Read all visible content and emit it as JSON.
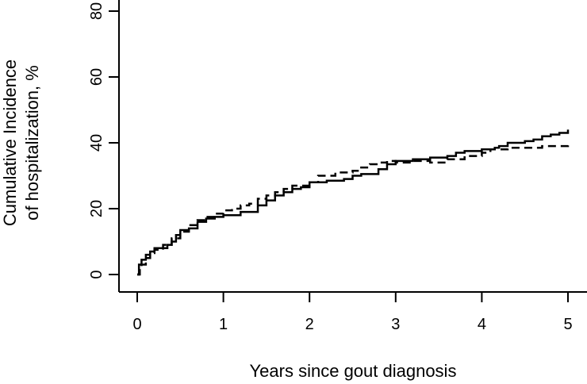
{
  "chart_data": {
    "type": "line",
    "title": "",
    "xlabel": "Years since gout diagnosis",
    "ylabel_lines": [
      "Cumulative Incidence",
      "of hospitalization, %"
    ],
    "xlim": [
      0,
      5
    ],
    "ylim": [
      0,
      80
    ],
    "x_ticks": [
      0,
      1,
      2,
      3,
      4,
      5
    ],
    "y_ticks": [
      0,
      20,
      40,
      60,
      80
    ],
    "grid": false,
    "legend": "none",
    "series": [
      {
        "style": "solid",
        "color": "#000000",
        "points": [
          [
            0,
            0
          ],
          [
            0.02,
            3
          ],
          [
            0.05,
            4.5
          ],
          [
            0.1,
            6
          ],
          [
            0.15,
            7
          ],
          [
            0.2,
            8
          ],
          [
            0.3,
            8
          ],
          [
            0.35,
            9
          ],
          [
            0.4,
            10
          ],
          [
            0.45,
            12
          ],
          [
            0.5,
            13.5
          ],
          [
            0.6,
            14
          ],
          [
            0.7,
            16
          ],
          [
            0.8,
            17
          ],
          [
            0.9,
            17.5
          ],
          [
            1.0,
            18
          ],
          [
            1.2,
            19
          ],
          [
            1.3,
            19
          ],
          [
            1.4,
            21
          ],
          [
            1.5,
            22.5
          ],
          [
            1.6,
            24
          ],
          [
            1.7,
            25
          ],
          [
            1.8,
            26
          ],
          [
            1.9,
            26.5
          ],
          [
            2.0,
            28
          ],
          [
            2.2,
            28.5
          ],
          [
            2.4,
            29
          ],
          [
            2.5,
            30
          ],
          [
            2.6,
            30.5
          ],
          [
            2.8,
            32
          ],
          [
            2.9,
            33.5
          ],
          [
            3.0,
            34.5
          ],
          [
            3.2,
            35
          ],
          [
            3.4,
            35.5
          ],
          [
            3.6,
            36
          ],
          [
            3.7,
            37
          ],
          [
            3.8,
            37.5
          ],
          [
            4.0,
            38
          ],
          [
            4.15,
            38.5
          ],
          [
            4.2,
            39
          ],
          [
            4.3,
            40
          ],
          [
            4.5,
            40.5
          ],
          [
            4.6,
            41
          ],
          [
            4.7,
            42
          ],
          [
            4.8,
            42.5
          ],
          [
            4.9,
            43
          ],
          [
            5.0,
            44
          ]
        ]
      },
      {
        "style": "dashed",
        "color": "#000000",
        "points": [
          [
            0,
            0
          ],
          [
            0.03,
            2
          ],
          [
            0.05,
            3
          ],
          [
            0.1,
            5
          ],
          [
            0.15,
            6.5
          ],
          [
            0.2,
            7.5
          ],
          [
            0.3,
            9
          ],
          [
            0.4,
            11
          ],
          [
            0.5,
            13
          ],
          [
            0.6,
            15
          ],
          [
            0.7,
            16.5
          ],
          [
            0.8,
            17.5
          ],
          [
            0.9,
            18.5
          ],
          [
            1.0,
            19.5
          ],
          [
            1.1,
            20
          ],
          [
            1.2,
            21
          ],
          [
            1.3,
            21.5
          ],
          [
            1.4,
            23
          ],
          [
            1.5,
            24
          ],
          [
            1.6,
            25
          ],
          [
            1.7,
            26
          ],
          [
            1.8,
            27
          ],
          [
            2.0,
            28
          ],
          [
            2.1,
            30
          ],
          [
            2.3,
            31
          ],
          [
            2.5,
            31.5
          ],
          [
            2.6,
            32.5
          ],
          [
            2.7,
            33.5
          ],
          [
            2.8,
            34
          ],
          [
            2.9,
            34.5
          ],
          [
            3.0,
            34
          ],
          [
            3.2,
            34.5
          ],
          [
            3.4,
            34
          ],
          [
            3.6,
            35
          ],
          [
            3.8,
            36
          ],
          [
            4.0,
            37
          ],
          [
            4.1,
            38
          ],
          [
            4.3,
            38.5
          ],
          [
            4.5,
            38.5
          ],
          [
            4.7,
            39
          ],
          [
            5.0,
            39.5
          ]
        ]
      }
    ]
  }
}
